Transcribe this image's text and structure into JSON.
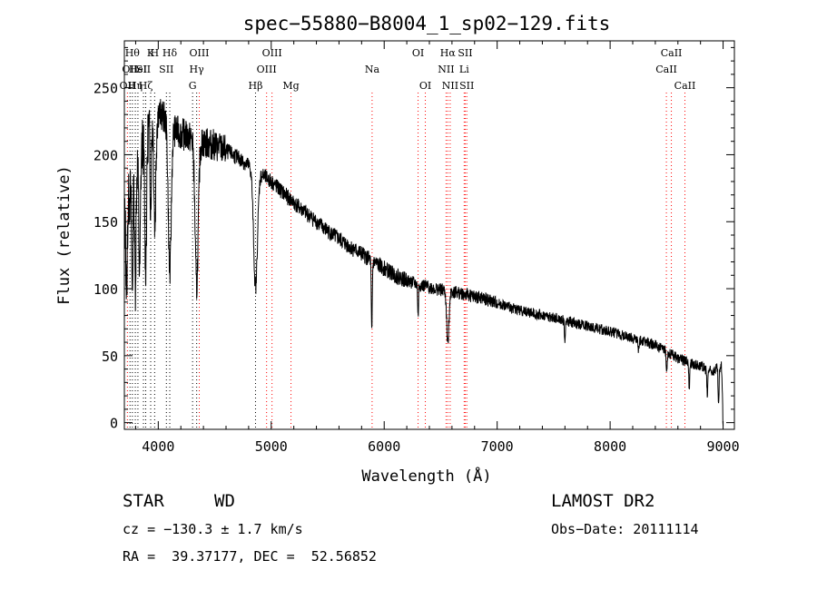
{
  "chart_data": {
    "type": "line",
    "title": "spec−55880−B8004_1_sp02−129.fits",
    "xlabel": "Wavelength (Å)",
    "ylabel": "Flux (relative)",
    "xlim": [
      3700,
      9100
    ],
    "ylim": [
      -5,
      285
    ],
    "xticks": [
      4000,
      5000,
      6000,
      7000,
      8000,
      9000
    ],
    "yticks": [
      0,
      50,
      100,
      150,
      200,
      250
    ],
    "grid": false,
    "legend": "none",
    "continuum": [
      [
        3700,
        150
      ],
      [
        3750,
        170
      ],
      [
        3800,
        190
      ],
      [
        3850,
        205
      ],
      [
        3900,
        218
      ],
      [
        3950,
        228
      ],
      [
        4000,
        232
      ],
      [
        4050,
        228
      ],
      [
        4100,
        220
      ],
      [
        4150,
        218
      ],
      [
        4200,
        216
      ],
      [
        4300,
        212
      ],
      [
        4400,
        209
      ],
      [
        4500,
        207
      ],
      [
        4600,
        203
      ],
      [
        4700,
        198
      ],
      [
        4800,
        192
      ],
      [
        4900,
        186
      ],
      [
        5000,
        180
      ],
      [
        5100,
        172
      ],
      [
        5200,
        164
      ],
      [
        5300,
        157
      ],
      [
        5400,
        150
      ],
      [
        5500,
        143
      ],
      [
        5600,
        137
      ],
      [
        5700,
        131
      ],
      [
        5800,
        126
      ],
      [
        5900,
        120
      ],
      [
        6000,
        115
      ],
      [
        6100,
        110
      ],
      [
        6200,
        106
      ],
      [
        6300,
        103
      ],
      [
        6400,
        101
      ],
      [
        6500,
        99
      ],
      [
        6600,
        98
      ],
      [
        6700,
        96
      ],
      [
        6800,
        94
      ],
      [
        6900,
        92
      ],
      [
        7000,
        89
      ],
      [
        7200,
        84
      ],
      [
        7400,
        80
      ],
      [
        7600,
        76
      ],
      [
        7800,
        72
      ],
      [
        8000,
        68
      ],
      [
        8200,
        63
      ],
      [
        8400,
        58
      ],
      [
        8500,
        53
      ],
      [
        8600,
        48
      ],
      [
        8700,
        45
      ],
      [
        8800,
        42
      ],
      [
        8900,
        38
      ],
      [
        8980,
        42
      ],
      [
        9000,
        45
      ]
    ],
    "absorption_features": [
      {
        "x": 3720,
        "depth": 60,
        "width": 8
      },
      {
        "x": 3770,
        "depth": 80,
        "width": 8
      },
      {
        "x": 3797,
        "depth": 85,
        "width": 9
      },
      {
        "x": 3835,
        "depth": 90,
        "width": 10
      },
      {
        "x": 3889,
        "depth": 95,
        "width": 12
      },
      {
        "x": 3933,
        "depth": 60,
        "width": 8
      },
      {
        "x": 3970,
        "depth": 80,
        "width": 12
      },
      {
        "x": 4102,
        "depth": 110,
        "width": 18
      },
      {
        "x": 4340,
        "depth": 110,
        "width": 20
      },
      {
        "x": 4861,
        "depth": 88,
        "width": 24
      },
      {
        "x": 5890,
        "depth": 55,
        "width": 6
      },
      {
        "x": 6300,
        "depth": 25,
        "width": 5
      },
      {
        "x": 6563,
        "depth": 40,
        "width": 14
      },
      {
        "x": 7600,
        "depth": 15,
        "width": 6
      },
      {
        "x": 8250,
        "depth": 10,
        "width": 5
      },
      {
        "x": 8500,
        "depth": 15,
        "width": 6
      },
      {
        "x": 8700,
        "depth": 18,
        "width": 6
      },
      {
        "x": 8860,
        "depth": 20,
        "width": 6
      },
      {
        "x": 8960,
        "depth": 30,
        "width": 6
      },
      {
        "x": 9000,
        "depth": 45,
        "width": 8
      }
    ],
    "line_markers": [
      {
        "x": 3727,
        "row": 2,
        "label": "OII",
        "color": "#ff0000"
      },
      {
        "x": 3750,
        "row": 1,
        "label": "OII",
        "color": "#000000"
      },
      {
        "x": 3771,
        "row": 0,
        "label": "Hθ",
        "color": "#000000"
      },
      {
        "x": 3797,
        "row": 2,
        "label": "Hη",
        "color": "#000000"
      },
      {
        "x": 3820,
        "row": 1,
        "label": "HeI",
        "color": "#000000"
      },
      {
        "x": 3869,
        "row": 1,
        "label": "SII",
        "color": "#000000"
      },
      {
        "x": 3889,
        "row": 2,
        "label": "Hζ",
        "color": "#000000"
      },
      {
        "x": 3933,
        "row": 0,
        "label": "K",
        "color": "#000000"
      },
      {
        "x": 3968,
        "row": 0,
        "label": "H",
        "color": "#000000"
      },
      {
        "x": 4072,
        "row": 1,
        "label": "SII",
        "color": "#000000"
      },
      {
        "x": 4102,
        "row": 0,
        "label": "Hδ",
        "color": "#000000"
      },
      {
        "x": 4304,
        "row": 2,
        "label": "G",
        "color": "#000000"
      },
      {
        "x": 4340,
        "row": 1,
        "label": "Hγ",
        "color": "#000000"
      },
      {
        "x": 4363,
        "row": 0,
        "label": "OIII",
        "color": "#ff0000"
      },
      {
        "x": 4861,
        "row": 2,
        "label": "Hβ",
        "color": "#000000"
      },
      {
        "x": 4959,
        "row": 1,
        "label": "OIII",
        "color": "#ff0000"
      },
      {
        "x": 5007,
        "row": 0,
        "label": "OIII",
        "color": "#ff0000"
      },
      {
        "x": 5175,
        "row": 2,
        "label": "Mg",
        "color": "#ff0000"
      },
      {
        "x": 5893,
        "row": 1,
        "label": "Na",
        "color": "#ff0000"
      },
      {
        "x": 6300,
        "row": 0,
        "label": "OI",
        "color": "#ff0000"
      },
      {
        "x": 6364,
        "row": 2,
        "label": "OI",
        "color": "#ff0000"
      },
      {
        "x": 6548,
        "row": 1,
        "label": "NII",
        "color": "#ff0000"
      },
      {
        "x": 6563,
        "row": 0,
        "label": "Hα",
        "color": "#ff0000"
      },
      {
        "x": 6584,
        "row": 2,
        "label": "NII",
        "color": "#ff0000"
      },
      {
        "x": 6708,
        "row": 1,
        "label": "Li",
        "color": "#ff0000"
      },
      {
        "x": 6717,
        "row": 0,
        "label": "SII",
        "color": "#ff0000"
      },
      {
        "x": 6731,
        "row": 2,
        "label": "SII",
        "color": "#ff0000"
      },
      {
        "x": 8498,
        "row": 1,
        "label": "CaII",
        "color": "#ff0000"
      },
      {
        "x": 8542,
        "row": 0,
        "label": "CaII",
        "color": "#ff0000"
      },
      {
        "x": 8662,
        "row": 2,
        "label": "CaII",
        "color": "#ff0000"
      }
    ]
  },
  "info": {
    "class_label": "STAR",
    "subclass": "WD",
    "survey": "LAMOST DR2",
    "cz": "cz = −130.3 ± 1.7 km/s",
    "obs_date": "Obs−Date: 20111114",
    "coords": "RA =  39.37177, DEC =  52.56852"
  }
}
